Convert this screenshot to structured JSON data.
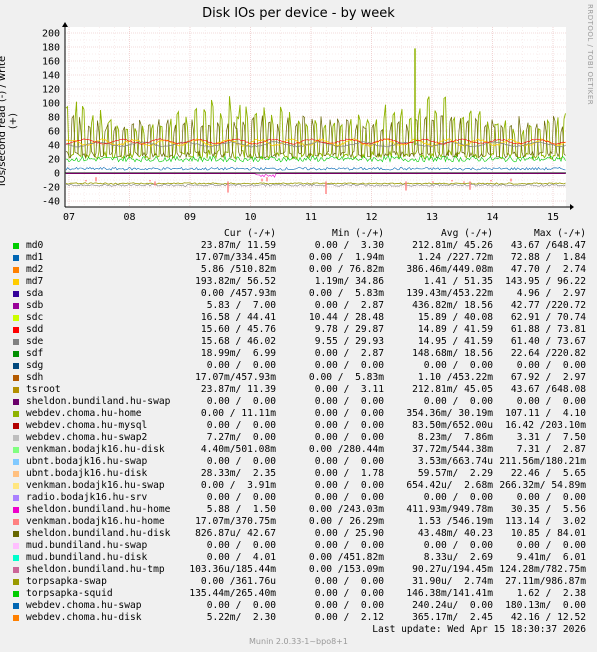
{
  "title": "Disk IOs per device - by week",
  "side_label": "RRDTOOL / TOBI OETIKER",
  "footer_version": "Munin 2.0.33-1~bpo8+1",
  "last_update": "Last update: Wed Apr 15 18:30:37 2026",
  "columns": [
    "Cur (-/+)",
    "Min (-/+)",
    "Avg (-/+)",
    "Max (-/+)"
  ],
  "chart_data": {
    "type": "line",
    "title": "Disk IOs per device - by week",
    "ylabel": "IOs/second read (-) / write (+)",
    "xlabel": "",
    "ylim": [
      -45,
      205
    ],
    "yticks": [
      200,
      180,
      160,
      140,
      120,
      100,
      80,
      60,
      40,
      20,
      0,
      -20,
      -40
    ],
    "xticks": [
      "07",
      "08",
      "09",
      "10",
      "11",
      "12",
      "13",
      "14",
      "15"
    ],
    "grid": true,
    "series_summary": [
      {
        "name": "md0",
        "color": "#00cc00",
        "cur": "23.87m/ 11.59",
        "min": "0.00 /  3.30",
        "avg": "212.81m/ 45.26",
        "max": "43.67 /648.47"
      },
      {
        "name": "md1",
        "color": "#0066b3",
        "cur": "17.07m/334.45m",
        "min": "0.00 /  1.94m",
        "avg": "1.24 /227.72m",
        "max": "72.88 /  1.84"
      },
      {
        "name": "md2",
        "color": "#ff8000",
        "cur": "5.86 /510.82m",
        "min": "0.00 / 76.82m",
        "avg": "386.46m/449.08m",
        "max": "47.70 /  2.74"
      },
      {
        "name": "md7",
        "color": "#ffcc00",
        "cur": "193.82m/ 56.52",
        "min": "1.19m/ 34.86",
        "avg": "1.41 / 51.35",
        "max": "143.95 / 96.22"
      },
      {
        "name": "sda",
        "color": "#330099",
        "cur": "0.00 /457.93m",
        "min": "0.00 /  5.83m",
        "avg": "139.43m/453.22m",
        "max": "4.96 /  2.97"
      },
      {
        "name": "sdb",
        "color": "#990099",
        "cur": "5.83 /  7.00",
        "min": "0.00 /  2.87",
        "avg": "436.82m/ 18.56",
        "max": "42.77 /220.72"
      },
      {
        "name": "sdc",
        "color": "#ccff00",
        "cur": "16.58 / 44.41",
        "min": "10.44 / 28.48",
        "avg": "15.89 / 40.08",
        "max": "62.91 / 70.74"
      },
      {
        "name": "sdd",
        "color": "#ff0000",
        "cur": "15.60 / 45.76",
        "min": "9.78 / 29.87",
        "avg": "14.89 / 41.59",
        "max": "61.88 / 73.81"
      },
      {
        "name": "sde",
        "color": "#808080",
        "cur": "15.68 / 46.02",
        "min": "9.55 / 29.93",
        "avg": "14.95 / 41.59",
        "max": "61.40 / 73.67"
      },
      {
        "name": "sdf",
        "color": "#008f00",
        "cur": "18.99m/  6.99",
        "min": "0.00 /  2.87",
        "avg": "148.68m/ 18.56",
        "max": "22.64 /220.82"
      },
      {
        "name": "sdg",
        "color": "#00487d",
        "cur": "0.00 /  0.00",
        "min": "0.00 /  0.00",
        "avg": "0.00 /  0.00",
        "max": "0.00 /  0.00"
      },
      {
        "name": "sdh",
        "color": "#b35a00",
        "cur": "17.07m/457.93m",
        "min": "0.00 /  5.83m",
        "avg": "1.10 /453.22m",
        "max": "67.92 /  2.97"
      },
      {
        "name": "tsroot",
        "color": "#b38f00",
        "cur": "23.87m/ 11.39",
        "min": "0.00 /  3.11",
        "avg": "212.81m/ 45.05",
        "max": "43.67 /648.08"
      },
      {
        "name": "sheldon.bundiland.hu-swap",
        "color": "#6b006b",
        "cur": "0.00 /  0.00",
        "min": "0.00 /  0.00",
        "avg": "0.00 /  0.00",
        "max": "0.00 /  0.00"
      },
      {
        "name": "webdev.choma.hu-home",
        "color": "#8fb300",
        "cur": "0.00 / 11.11m",
        "min": "0.00 /  0.00",
        "avg": "354.36m/ 30.19m",
        "max": "107.11 /  4.10"
      },
      {
        "name": "webdev.choma.hu-mysql",
        "color": "#b30000",
        "cur": "0.00 /  0.00",
        "min": "0.00 /  0.00",
        "avg": "83.50m/652.00u",
        "max": "16.42 /203.10m"
      },
      {
        "name": "webdev.choma.hu-swap2",
        "color": "#bebebe",
        "cur": "7.27m/  0.00",
        "min": "0.00 /  0.00",
        "avg": "8.23m/  7.86m",
        "max": "3.31 /  7.50"
      },
      {
        "name": "venkman.bodajk16.hu-disk",
        "color": "#80ff80",
        "cur": "4.40m/501.08m",
        "min": "0.00 /280.44m",
        "avg": "37.72m/544.38m",
        "max": "7.31 /  2.87"
      },
      {
        "name": "ubnt.bodajk16.hu-swap",
        "color": "#80c9ff",
        "cur": "0.00 /  0.00",
        "min": "0.00 /  0.00",
        "avg": "3.53m/663.74u",
        "max": "211.56m/180.21m"
      },
      {
        "name": "ubnt.bodajk16.hu-disk",
        "color": "#ffc080",
        "cur": "28.33m/  2.35",
        "min": "0.00 /  1.78",
        "avg": "59.57m/  2.29",
        "max": "22.46 /  5.65"
      },
      {
        "name": "venkman.bodajk16.hu-swap",
        "color": "#ffe680",
        "cur": "0.00 /  3.91m",
        "min": "0.00 /  0.00",
        "avg": "654.42u/  2.68m",
        "max": "266.32m/ 54.89m"
      },
      {
        "name": "radio.bodajk16.hu-srv",
        "color": "#aa80ff",
        "cur": "0.00 /  0.00",
        "min": "0.00 /  0.00",
        "avg": "0.00 /  0.00",
        "max": "0.00 /  0.00"
      },
      {
        "name": "sheldon.bundiland.hu-home",
        "color": "#ee00cc",
        "cur": "5.88 /  1.50",
        "min": "0.00 /243.03m",
        "avg": "411.93m/949.78m",
        "max": "30.35 /  5.56"
      },
      {
        "name": "venkman.bodajk16.hu-home",
        "color": "#ff8080",
        "cur": "17.07m/370.75m",
        "min": "0.00 / 26.29m",
        "avg": "1.53 /546.19m",
        "max": "113.14 /  3.02"
      },
      {
        "name": "sheldon.bundiland.hu-disk",
        "color": "#666600",
        "cur": "826.87u/ 42.67",
        "min": "0.00 / 25.90",
        "avg": "43.48m/ 40.23",
        "max": "10.85 / 84.01"
      },
      {
        "name": "mud.bundiland.hu-swap",
        "color": "#ffbfff",
        "cur": "0.00 /  0.00",
        "min": "0.00 /  0.00",
        "avg": "0.00 /  0.00",
        "max": "0.00 /  0.00"
      },
      {
        "name": "mud.bundiland.hu-disk",
        "color": "#00ffcc",
        "cur": "0.00 /  4.01",
        "min": "0.00 /451.82m",
        "avg": "8.33u/  2.69",
        "max": "9.41m/  6.01"
      },
      {
        "name": "sheldon.bundiland.hu-tmp",
        "color": "#cc6699",
        "cur": "103.36u/185.44m",
        "min": "0.00 /153.09m",
        "avg": "90.27u/194.45m",
        "max": "124.28m/782.75m"
      },
      {
        "name": "torpsapka-swap",
        "color": "#999900",
        "cur": "0.00 /361.76u",
        "min": "0.00 /  0.00",
        "avg": "31.90u/  2.74m",
        "max": "27.11m/986.87m"
      },
      {
        "name": "torpsapka-squid",
        "color": "#00cc00",
        "cur": "135.44m/265.40m",
        "min": "0.00 /  0.00",
        "avg": "146.38m/141.41m",
        "max": "1.62 /  2.38"
      },
      {
        "name": "webdev.choma.hu-swap",
        "color": "#0066b3",
        "cur": "0.00 /  0.00",
        "min": "0.00 /  0.00",
        "avg": "240.24u/  0.00",
        "max": "180.13m/  0.00"
      },
      {
        "name": "webdev.choma.hu-disk",
        "color": "#ff8000",
        "cur": "5.22m/  2.30",
        "min": "0.00 /  2.12",
        "avg": "365.17m/  2.45",
        "max": "42.16 / 12.52"
      }
    ]
  }
}
